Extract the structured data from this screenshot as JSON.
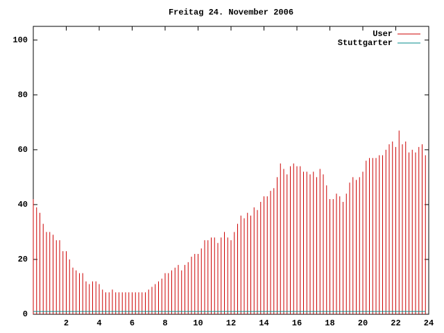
{
  "chart_data": {
    "type": "impulse",
    "title": "Freitag 24. November 2006",
    "x": [
      0,
      0.2,
      0.4,
      0.6,
      0.8,
      1,
      1.2,
      1.4,
      1.6,
      1.8,
      2,
      2.2,
      2.4,
      2.6,
      2.8,
      3,
      3.2,
      3.4,
      3.6,
      3.8,
      4,
      4.2,
      4.4,
      4.6,
      4.8,
      5,
      5.2,
      5.4,
      5.6,
      5.8,
      6,
      6.2,
      6.4,
      6.6,
      6.8,
      7,
      7.2,
      7.4,
      7.6,
      7.8,
      8,
      8.2,
      8.4,
      8.6,
      8.8,
      9,
      9.2,
      9.4,
      9.6,
      9.8,
      10,
      10.2,
      10.4,
      10.6,
      10.8,
      11,
      11.2,
      11.4,
      11.6,
      11.8,
      12,
      12.2,
      12.4,
      12.6,
      12.8,
      13,
      13.2,
      13.4,
      13.6,
      13.8,
      14,
      14.2,
      14.4,
      14.6,
      14.8,
      15,
      15.2,
      15.4,
      15.6,
      15.8,
      16,
      16.2,
      16.4,
      16.6,
      16.8,
      17,
      17.2,
      17.4,
      17.6,
      17.8,
      18,
      18.2,
      18.4,
      18.6,
      18.8,
      19,
      19.2,
      19.4,
      19.6,
      19.8,
      20,
      20.2,
      20.4,
      20.6,
      20.8,
      21,
      21.2,
      21.4,
      21.6,
      21.8,
      22,
      22.2,
      22.4,
      22.6,
      22.8,
      23,
      23.2,
      23.4,
      23.6,
      23.8
    ],
    "series": [
      {
        "name": "User",
        "color": "#cc0000",
        "style": "impulses",
        "values": [
          42,
          39,
          37,
          33,
          30,
          30,
          29,
          27,
          27,
          23,
          23,
          20,
          17,
          16,
          15,
          15,
          12,
          11,
          12,
          12,
          11,
          9,
          8,
          8,
          9,
          8,
          8,
          8,
          8,
          8,
          8,
          8,
          8,
          8,
          8,
          9,
          10,
          11,
          12,
          13,
          15,
          15,
          16,
          17,
          18,
          16,
          18,
          19,
          21,
          22,
          22,
          24,
          27,
          27,
          28,
          28,
          26,
          28,
          30,
          28,
          27,
          30,
          33,
          36,
          35,
          37,
          36,
          39,
          38,
          41,
          43,
          43,
          45,
          46,
          50,
          55,
          53,
          51,
          54,
          55,
          54,
          54,
          52,
          52,
          51,
          52,
          50,
          53,
          51,
          47,
          42,
          42,
          44,
          43,
          41,
          44,
          48,
          50,
          49,
          50,
          52,
          56,
          57,
          57,
          57,
          58,
          58,
          60,
          62,
          63,
          61,
          67,
          62,
          63,
          59,
          60,
          59,
          61,
          62,
          58
        ]
      },
      {
        "name": "Stuttgarter",
        "color": "#008b8b",
        "style": "line",
        "values": [
          1,
          1,
          1,
          1,
          1,
          1,
          1,
          1,
          1,
          1,
          1,
          1,
          1,
          1,
          1,
          1,
          1,
          1,
          1,
          1,
          1,
          1,
          1,
          1,
          1,
          1,
          1,
          1,
          1,
          1,
          1,
          1,
          1,
          1,
          1,
          1,
          1,
          1,
          1,
          1,
          1,
          1,
          1,
          1,
          1,
          1,
          1,
          1,
          1,
          1,
          1,
          1,
          1,
          1,
          1,
          1,
          1,
          1,
          1,
          1,
          1,
          1,
          1,
          1,
          1,
          1,
          1,
          1,
          1,
          1,
          1,
          1,
          1,
          1,
          1,
          1,
          1,
          1,
          1,
          1,
          1,
          1,
          1,
          1,
          1,
          1,
          1,
          1,
          1,
          1,
          1,
          1,
          1,
          1,
          1,
          1,
          1,
          1,
          1,
          1,
          1,
          1,
          1,
          1,
          1,
          1,
          1,
          1,
          1,
          1,
          1,
          1,
          1,
          1,
          1,
          1,
          1,
          1,
          1,
          1
        ]
      }
    ],
    "xlim": [
      0,
      24
    ],
    "ylim": [
      0,
      105
    ],
    "xticks": [
      2,
      4,
      6,
      8,
      10,
      12,
      14,
      16,
      18,
      20,
      22,
      24
    ],
    "yticks": [
      0,
      20,
      40,
      60,
      80,
      100
    ],
    "legend": "top-right"
  }
}
